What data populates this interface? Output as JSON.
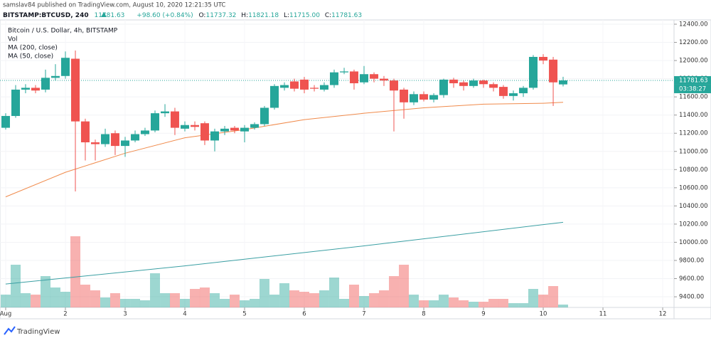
{
  "header": {
    "publisher": "samslav84 published on TradingView.com, August 10, 2020 12:21:35 UTC",
    "symbol": "BITSTAMP:BTCUSD, 240",
    "last": "11781.63",
    "change": "+98.60 (+0.84%)",
    "ohlc": [
      {
        "label": "O:",
        "value": "11737.32"
      },
      {
        "label": "H:",
        "value": "11821.18"
      },
      {
        "label": "L:",
        "value": "11715.00"
      },
      {
        "label": "C:",
        "value": "11781.63"
      }
    ]
  },
  "chart_data": {
    "type": "candlestick",
    "title": "Bitcoin / U.S. Dollar, 4h, BITSTAMP",
    "volume_label": "Vol",
    "up_color": "#26a69a",
    "down_color": "#ef5350",
    "grid": true,
    "x": [
      1,
      1.167,
      1.333,
      1.5,
      1.667,
      1.833,
      2,
      2.167,
      2.333,
      2.5,
      2.667,
      2.833,
      3,
      3.167,
      3.333,
      3.5,
      3.667,
      3.833,
      4,
      4.167,
      4.333,
      4.5,
      4.667,
      4.833,
      5,
      5.167,
      5.333,
      5.5,
      5.667,
      5.833,
      6,
      6.167,
      6.333,
      6.5,
      6.667,
      6.833,
      7,
      7.167,
      7.333,
      7.5,
      7.667,
      7.833,
      8,
      8.167,
      8.333,
      8.5,
      8.667,
      8.833,
      9,
      9.167,
      9.333,
      9.5,
      9.667,
      9.833,
      10,
      10.167,
      10.333
    ],
    "open": [
      11260,
      11390,
      11680,
      11700,
      11680,
      11810,
      11830,
      12020,
      11330,
      11100,
      11080,
      11200,
      11060,
      11120,
      11190,
      11230,
      11420,
      11440,
      11250,
      11290,
      11310,
      11120,
      11220,
      11260,
      11220,
      11260,
      11300,
      11480,
      11700,
      11770,
      11790,
      11700,
      11680,
      11730,
      11870,
      11880,
      11760,
      11850,
      11800,
      11780,
      11680,
      11540,
      11630,
      11570,
      11620,
      11790,
      11760,
      11720,
      11780,
      11740,
      11710,
      11610,
      11640,
      11700,
      12040,
      12010,
      11737.32
    ],
    "high": [
      11420,
      11730,
      11740,
      11730,
      11900,
      11960,
      12100,
      12110,
      11360,
      11130,
      11250,
      11230,
      11160,
      11230,
      11260,
      11450,
      11520,
      11480,
      11330,
      11330,
      11330,
      11250,
      11280,
      11280,
      11290,
      11320,
      11500,
      11740,
      11760,
      11800,
      11820,
      11730,
      11760,
      11900,
      11920,
      11900,
      11940,
      11870,
      11830,
      11800,
      11700,
      11660,
      11660,
      11640,
      11800,
      11810,
      11780,
      11800,
      11790,
      11760,
      11730,
      11670,
      11720,
      12060,
      12070,
      12040,
      11821.18
    ],
    "low": [
      11240,
      11370,
      11640,
      11640,
      11650,
      11780,
      11800,
      10560,
      10900,
      10900,
      11050,
      10960,
      10940,
      11100,
      11170,
      11210,
      11380,
      11180,
      11220,
      11230,
      11070,
      11000,
      11180,
      11200,
      11100,
      11240,
      11280,
      11460,
      11670,
      11660,
      11640,
      11660,
      11660,
      11700,
      11850,
      11680,
      11740,
      11760,
      11720,
      11220,
      11360,
      11510,
      11550,
      11540,
      11590,
      11700,
      11670,
      11700,
      11700,
      11660,
      11580,
      11560,
      11600,
      11680,
      11960,
      11500,
      11715
    ],
    "close": [
      11390,
      11680,
      11700,
      11670,
      11810,
      11830,
      12030,
      11330,
      11100,
      11080,
      11190,
      11060,
      11120,
      11190,
      11230,
      11420,
      11440,
      11260,
      11290,
      11270,
      11120,
      11220,
      11250,
      11230,
      11260,
      11300,
      11480,
      11720,
      11730,
      11690,
      11680,
      11690,
      11730,
      11870,
      11880,
      11750,
      11850,
      11800,
      11780,
      11670,
      11540,
      11630,
      11570,
      11620,
      11790,
      11750,
      11720,
      11780,
      11740,
      11700,
      11610,
      11640,
      11700,
      12040,
      12000,
      11760,
      11781.63
    ],
    "volume": [
      1800,
      6000,
      2000,
      1800,
      4400,
      2800,
      2200,
      10000,
      3200,
      2400,
      1400,
      2000,
      1200,
      1200,
      1000,
      4800,
      2000,
      2000,
      1200,
      2600,
      2800,
      2000,
      1200,
      1800,
      1000,
      1200,
      4000,
      1800,
      3400,
      2400,
      2200,
      2000,
      2400,
      4200,
      1200,
      3200,
      1600,
      2000,
      2400,
      4400,
      6000,
      1800,
      1000,
      1000,
      1800,
      1400,
      1000,
      800,
      800,
      1200,
      1200,
      600,
      600,
      2600,
      1800,
      3000,
      400
    ],
    "series": [
      {
        "name": "MA (200, close)",
        "color": "#3a9fa3",
        "x": [
          1,
          4,
          7,
          10.333
        ],
        "values": [
          9540,
          9740,
          9960,
          10220
        ]
      },
      {
        "name": "MA (50, close)",
        "color": "#f08a4b",
        "x": [
          1,
          2,
          3,
          4,
          5,
          6,
          7,
          8,
          9,
          10,
          10.333
        ],
        "values": [
          10500,
          10770,
          10980,
          11150,
          11240,
          11350,
          11420,
          11480,
          11520,
          11530,
          11540
        ]
      }
    ],
    "price_tag": {
      "value": 11781.63,
      "label": "11781.63",
      "countdown": "03:38:27"
    },
    "xlim": [
      0.905,
      12.19
    ],
    "ylim": [
      9283,
      12447
    ],
    "xticks": [
      {
        "value": 1,
        "label": "Aug"
      },
      2,
      3,
      4,
      5,
      6,
      7,
      8,
      9,
      10,
      11,
      12
    ],
    "yticks": [
      {
        "value": 9400,
        "label": "9400.00"
      },
      {
        "value": 9600,
        "label": "9600.00"
      },
      {
        "value": 9800,
        "label": "9800.00"
      },
      {
        "value": 10000,
        "label": "10000.00"
      },
      {
        "value": 10200,
        "label": "10200.00"
      },
      {
        "value": 10400,
        "label": "10400.00"
      },
      {
        "value": 10600,
        "label": "10600.00"
      },
      {
        "value": 10800,
        "label": "10800.00"
      },
      {
        "value": 11000,
        "label": "11000.00"
      },
      {
        "value": 11200,
        "label": "11200.00"
      },
      {
        "value": 11400,
        "label": "11400.00"
      },
      {
        "value": 11600,
        "label": "11600.00"
      },
      {
        "value": 11800,
        "label": "11800.00"
      },
      {
        "value": 12000,
        "label": "12000.00"
      },
      {
        "value": 12200,
        "label": "12200.00"
      },
      {
        "value": 12400,
        "label": "12400.00"
      }
    ],
    "footer": "TradingView"
  }
}
